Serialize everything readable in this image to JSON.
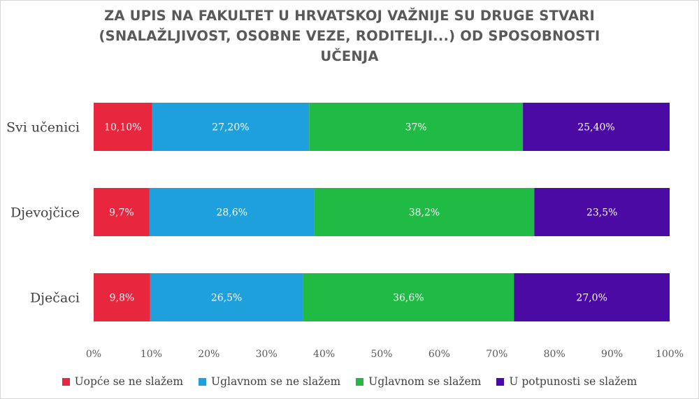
{
  "chart_data": {
    "type": "bar",
    "orientation": "horizontal",
    "stacked": true,
    "title": "ZA UPIS NA FAKULTET U HRVATSKOJ VAŽNIJE SU DRUGE STVARI (SNALAŽLJIVOST, OSOBNE VEZE, RODITELJI...) OD SPOSOBNOSTI UČENJA",
    "title_lines": [
      "ZA UPIS NA FAKULTET U HRVATSKOJ VAŽNIJE SU DRUGE STVARI",
      "(SNALAŽLJIVOST, OSOBNE VEZE, RODITELJI...) OD SPOSOBNOSTI",
      "UČENJA"
    ],
    "categories": [
      "Svi učenici",
      "Djevojčice",
      "Dječaci"
    ],
    "series": [
      {
        "name": "Uopće se ne slažem",
        "color": "#e8273f",
        "values": [
          10.1,
          9.7,
          9.8
        ],
        "labels": [
          "10,10%",
          "9,7%",
          "9,8%"
        ]
      },
      {
        "name": "Uglavnom se ne slažem",
        "color": "#1ea0dc",
        "values": [
          27.2,
          28.6,
          26.5
        ],
        "labels": [
          "27,20%",
          "28,6%",
          "26,5%"
        ]
      },
      {
        "name": "Uglavnom se slažem",
        "color": "#20bb44",
        "values": [
          37.0,
          38.2,
          36.6
        ],
        "labels": [
          "37%",
          "38,2%",
          "36,6%"
        ]
      },
      {
        "name": "U potpunosti se slažem",
        "color": "#4b0aa3",
        "values": [
          25.4,
          23.5,
          27.0
        ],
        "labels": [
          "25,40%",
          "23,5%",
          "27,0%"
        ]
      }
    ],
    "xlim": [
      0,
      100
    ],
    "xticks": [
      "0%",
      "10%",
      "20%",
      "30%",
      "40%",
      "50%",
      "60%",
      "70%",
      "80%",
      "90%",
      "100%"
    ],
    "grid": false,
    "legend_position": "bottom"
  }
}
